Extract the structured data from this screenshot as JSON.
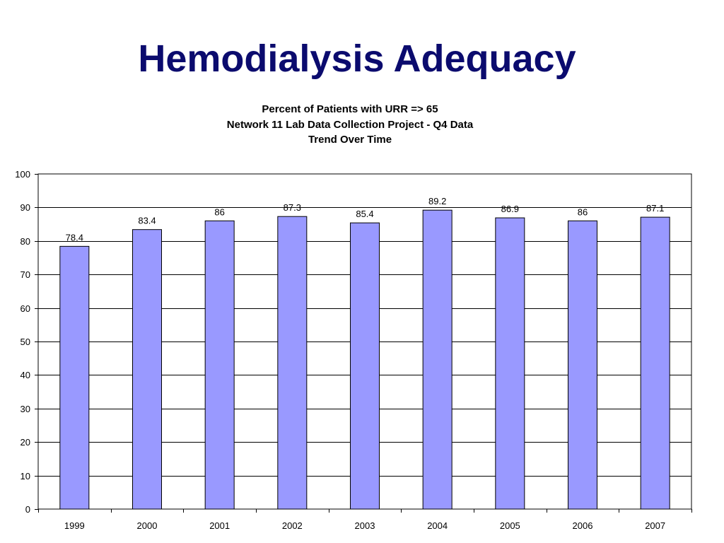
{
  "slide": {
    "title": "Hemodialysis Adequacy"
  },
  "chart_data": {
    "type": "bar",
    "title_lines": [
      "Percent of Patients with URR => 65",
      "Network 11 Lab Data Collection Project - Q4 Data",
      "Trend Over Time"
    ],
    "categories": [
      "1999",
      "2000",
      "2001",
      "2002",
      "2003",
      "2004",
      "2005",
      "2006",
      "2007"
    ],
    "values": [
      78.4,
      83.4,
      86,
      87.3,
      85.4,
      89.2,
      86.9,
      86,
      87.1
    ],
    "data_labels": [
      "78.4",
      "83.4",
      "86",
      "87.3",
      "85.4",
      "89.2",
      "86.9",
      "86",
      "87.1"
    ],
    "ylim": [
      0,
      100
    ],
    "y_ticks": [
      0,
      10,
      20,
      30,
      40,
      50,
      60,
      70,
      80,
      90,
      100
    ],
    "y_tick_labels": [
      "0",
      "10",
      "20",
      "30",
      "40",
      "50",
      "60",
      "70",
      "80",
      "90",
      "100"
    ],
    "xlabel": "",
    "ylabel": "",
    "grid": true,
    "legend": false,
    "bar_color": "#9999ff",
    "bar_outline": "#000000",
    "gridline_color": "#000000"
  }
}
